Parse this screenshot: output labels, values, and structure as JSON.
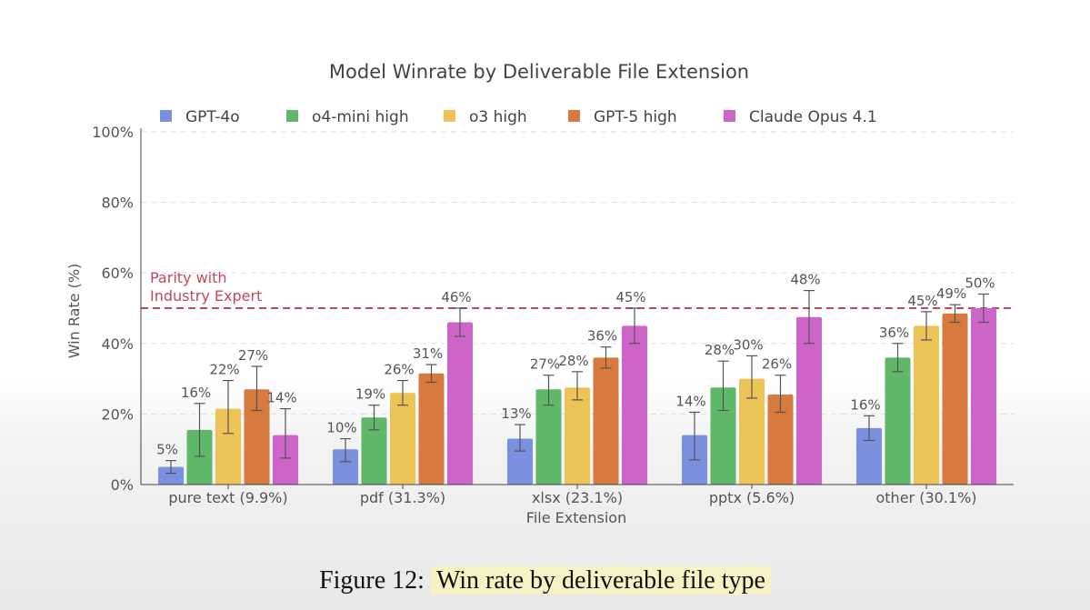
{
  "caption": {
    "prefix": "Figure 12:",
    "highlight": "Win rate by deliverable file type"
  },
  "chart_data": {
    "type": "bar",
    "title": "Model Winrate by Deliverable File Extension",
    "xlabel": "File Extension",
    "ylabel": "Win Rate (%)",
    "ylim": [
      0,
      100
    ],
    "yticks": [
      "0%",
      "20%",
      "40%",
      "60%",
      "80%",
      "100%"
    ],
    "categories": [
      "pure text (9.9%)",
      "pdf (31.3%)",
      "xlsx (23.1%)",
      "pptx (5.6%)",
      "other (30.1%)"
    ],
    "grid": true,
    "legend_position": "top",
    "series": [
      {
        "name": "GPT-4o",
        "color": "#7b8fdf",
        "values": [
          5,
          10,
          13,
          14,
          16
        ],
        "labels": [
          "5%",
          "10%",
          "13%",
          "14%",
          "16%"
        ],
        "err": [
          [
            3.2,
            6.8
          ],
          [
            6.5,
            13
          ],
          [
            9.5,
            17
          ],
          [
            7,
            20.5
          ],
          [
            12.5,
            19.5
          ]
        ]
      },
      {
        "name": "o4-mini high",
        "color": "#5fb86a",
        "values": [
          15.5,
          19,
          27,
          27.5,
          36
        ],
        "labels": [
          "16%",
          "19%",
          "27%",
          "28%",
          "36%"
        ],
        "err": [
          [
            8,
            23
          ],
          [
            15.5,
            22.5
          ],
          [
            22.5,
            31
          ],
          [
            21,
            35
          ],
          [
            32,
            40
          ]
        ]
      },
      {
        "name": "o3 high",
        "color": "#edc358",
        "values": [
          21.5,
          26,
          27.5,
          30,
          45
        ],
        "labels": [
          "22%",
          "26%",
          "28%",
          "30%",
          "45%"
        ],
        "err": [
          [
            14.5,
            29.5
          ],
          [
            22.5,
            29.5
          ],
          [
            24,
            32
          ],
          [
            24.5,
            36.5
          ],
          [
            41,
            49
          ]
        ]
      },
      {
        "name": "GPT-5 high",
        "color": "#d67a3f",
        "values": [
          27,
          31.5,
          36,
          25.5,
          48.5
        ],
        "labels": [
          "27%",
          "31%",
          "36%",
          "26%",
          "49%"
        ],
        "err": [
          [
            21,
            33.5
          ],
          [
            29,
            34
          ],
          [
            33,
            39
          ],
          [
            20.5,
            31
          ],
          [
            46,
            51
          ]
        ]
      },
      {
        "name": "Claude Opus 4.1",
        "color": "#cd65c8",
        "values": [
          14,
          46,
          45,
          47.5,
          50
        ],
        "labels": [
          "14%",
          "46%",
          "45%",
          "48%",
          "50%"
        ],
        "err": [
          [
            7.5,
            21.5
          ],
          [
            42,
            50
          ],
          [
            40,
            50
          ],
          [
            40,
            55
          ],
          [
            46,
            54
          ]
        ]
      }
    ],
    "annotations": {
      "reference_line": {
        "y": 50,
        "label": [
          "Parity with",
          "Industry Expert"
        ],
        "color": "#c0495a"
      }
    }
  }
}
